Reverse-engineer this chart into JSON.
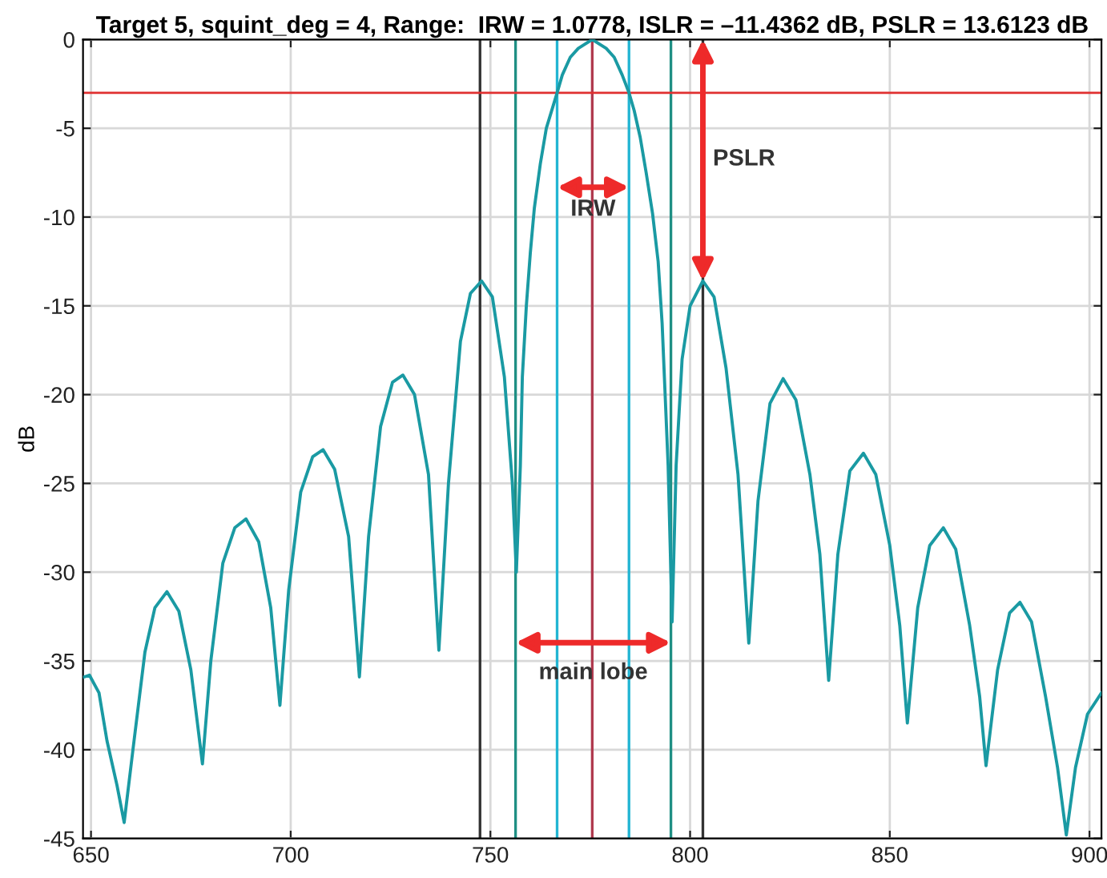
{
  "chart_data": {
    "type": "line",
    "title": "Target 5, squint_deg = 4, Range:  IRW = 1.0778, ISLR = –11.4362 dB, PSLR = 13.6123 dB",
    "ylabel": "dB",
    "x": [
      648.3,
      649.6,
      652,
      654,
      656.5,
      658.3,
      660.5,
      663.5,
      666,
      669,
      672,
      675,
      677.9,
      680,
      683,
      686,
      688.8,
      692,
      695,
      697.3,
      699.5,
      702.5,
      705.5,
      708.1,
      711,
      714.5,
      717.2,
      719.5,
      722.5,
      725.5,
      728.1,
      731,
      734.5,
      737.1,
      739.5,
      742.5,
      745,
      747.8,
      750.5,
      753.5,
      755.5,
      756.5,
      757.5,
      758,
      759,
      760,
      761,
      762.5,
      764,
      766.7,
      768,
      770,
      772,
      775.5,
      779,
      781,
      783,
      784.7,
      786,
      787.5,
      789,
      790.6,
      792,
      793,
      794.5,
      795.5,
      796.5,
      798,
      800,
      803.2,
      806,
      809,
      812,
      814.7,
      817,
      820,
      823.3,
      826.5,
      830,
      832.5,
      834.7,
      837,
      840,
      843.4,
      846.5,
      850,
      852.5,
      854.4,
      857,
      860,
      863.4,
      866.5,
      870,
      872.5,
      874.1,
      877,
      880,
      882.6,
      885.5,
      889,
      892,
      894.2,
      896.5,
      899.5,
      903
    ],
    "series": [
      {
        "color": "#1a9aa3",
        "values": [
          -35.9,
          -35.8,
          -36.8,
          -39.5,
          -42,
          -44.1,
          -40,
          -34.5,
          -32,
          -31.1,
          -32.2,
          -35.5,
          -40.8,
          -35,
          -29.5,
          -27.5,
          -27.0,
          -28.3,
          -32,
          -37.5,
          -31,
          -25.5,
          -23.5,
          -23.1,
          -24.2,
          -28,
          -35.9,
          -28,
          -21.8,
          -19.3,
          -18.9,
          -20,
          -24.5,
          -34.4,
          -25,
          -17,
          -14.3,
          -13.6,
          -14.5,
          -19,
          -25,
          -30.0,
          -24,
          -19,
          -15,
          -12,
          -9.5,
          -7,
          -5,
          -3,
          -2,
          -1,
          -0.5,
          0,
          -0.5,
          -1,
          -2,
          -3,
          -4,
          -5.5,
          -7.5,
          -9.8,
          -12.5,
          -16,
          -24,
          -32.8,
          -24,
          -18,
          -15,
          -13.6,
          -14.5,
          -18.5,
          -24.5,
          -34.0,
          -26,
          -20.5,
          -19.1,
          -20.3,
          -24.5,
          -29,
          -36.1,
          -29,
          -24.3,
          -23.3,
          -24.5,
          -28.5,
          -33,
          -38.5,
          -32,
          -28.5,
          -27.5,
          -28.7,
          -33,
          -37,
          -40.9,
          -35.5,
          -32.3,
          -31.7,
          -32.8,
          -37,
          -41,
          -44.8,
          -41,
          -38,
          -36.8
        ]
      }
    ],
    "xlim": [
      648,
      903
    ],
    "ylim": [
      -45,
      0
    ],
    "xticks": [
      650,
      700,
      750,
      800,
      850,
      900
    ],
    "yticks": [
      -45,
      -40,
      -35,
      -30,
      -25,
      -20,
      -15,
      -10,
      -5,
      0
    ],
    "grid": true,
    "marker": "none",
    "line_style": "solid",
    "ref_lines": [
      {
        "axis": "x",
        "value": 747.4,
        "color": "#333333"
      },
      {
        "axis": "x",
        "value": 803.2,
        "color": "#333333"
      },
      {
        "axis": "x",
        "value": 756.3,
        "color": "#1f8f84"
      },
      {
        "axis": "x",
        "value": 795.2,
        "color": "#1f8f84"
      },
      {
        "axis": "x",
        "value": 766.7,
        "color": "#23b5d3"
      },
      {
        "axis": "x",
        "value": 784.7,
        "color": "#23b5d3"
      },
      {
        "axis": "x",
        "value": 775.5,
        "color": "#b03a4f"
      },
      {
        "axis": "y",
        "value": -3,
        "color": "#e03030"
      }
    ],
    "annotations": [
      "IRW",
      "PSLR",
      "main lobe"
    ]
  }
}
